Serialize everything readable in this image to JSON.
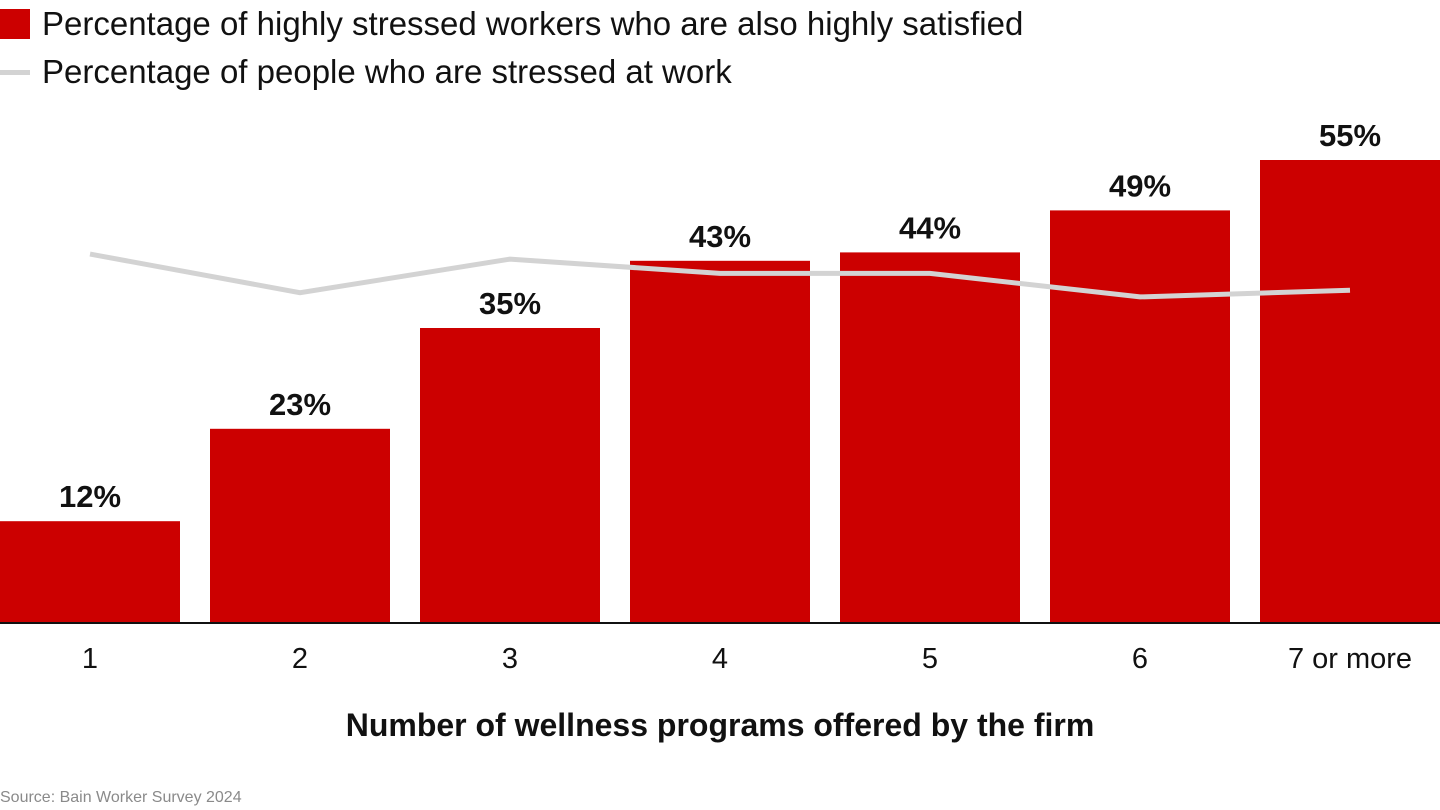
{
  "chart_data": {
    "type": "bar",
    "title": "",
    "xlabel": "Number of wellness programs offered by the firm",
    "ylabel": "",
    "categories": [
      "1",
      "2",
      "3",
      "4",
      "5",
      "6",
      "7 or more"
    ],
    "ylim": [
      0,
      55
    ],
    "grid": false,
    "legend_placement": "top-left",
    "series": [
      {
        "name": "Percentage of highly stressed workers who are also highly satisfied",
        "type": "bar",
        "color": "#cc0000",
        "values": [
          12,
          23,
          35,
          43,
          44,
          49,
          55
        ],
        "labels": [
          "12%",
          "23%",
          "35%",
          "43%",
          "44%",
          "49%",
          "55%"
        ]
      },
      {
        "name": "Percentage of people who are stressed at work",
        "type": "line",
        "color": "#d3d3d3",
        "values": [
          43.8,
          39.2,
          43.2,
          41.5,
          41.5,
          38.7,
          39.5
        ]
      }
    ]
  },
  "source": "Source: Bain Worker Survey 2024"
}
